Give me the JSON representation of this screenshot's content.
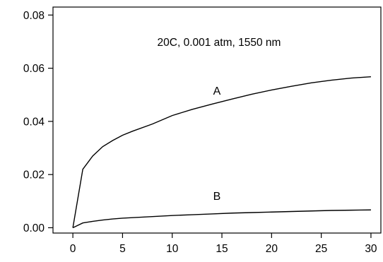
{
  "chart_data": {
    "type": "line",
    "title": "",
    "xlabel": "",
    "ylabel": "",
    "annotation": "20C, 0.001 atm, 1550 nm",
    "xlim": [
      -2,
      31
    ],
    "ylim": [
      -0.002,
      0.083
    ],
    "xticks": [
      0,
      5,
      10,
      15,
      20,
      25,
      30
    ],
    "yticks": [
      0.0,
      0.02,
      0.04,
      0.06,
      0.08
    ],
    "xtick_labels": [
      "0",
      "5",
      "10",
      "15",
      "20",
      "25",
      "30"
    ],
    "ytick_labels": [
      "0.00",
      "0.02",
      "0.04",
      "0.06",
      "0.08"
    ],
    "grid": false,
    "legend": "none",
    "line_color": "#000000",
    "series": [
      {
        "name": "A",
        "label_at": [
          14.5,
          0.05
        ],
        "x": [
          0,
          1,
          2,
          3,
          4,
          5,
          6,
          8,
          10,
          12,
          14,
          16,
          18,
          20,
          22,
          24,
          26,
          28,
          30
        ],
        "y": [
          0.0,
          0.022,
          0.027,
          0.0305,
          0.0328,
          0.0348,
          0.0363,
          0.039,
          0.0422,
          0.0445,
          0.0465,
          0.0484,
          0.0502,
          0.0518,
          0.0532,
          0.0545,
          0.0555,
          0.0563,
          0.0568
        ]
      },
      {
        "name": "B",
        "label_at": [
          14.5,
          0.0105
        ],
        "x": [
          0,
          1,
          2,
          3,
          4,
          5,
          6,
          8,
          10,
          12,
          14,
          16,
          18,
          20,
          22,
          24,
          26,
          28,
          30
        ],
        "y": [
          0.0,
          0.0018,
          0.0024,
          0.0029,
          0.0033,
          0.0036,
          0.0038,
          0.0042,
          0.0046,
          0.0049,
          0.0052,
          0.0055,
          0.0057,
          0.0059,
          0.0061,
          0.0063,
          0.0065,
          0.0066,
          0.0067
        ]
      }
    ]
  }
}
